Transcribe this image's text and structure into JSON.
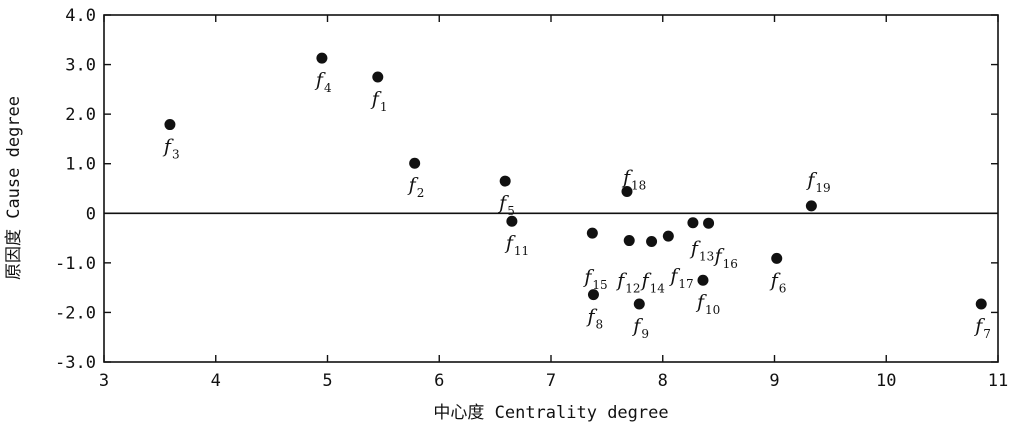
{
  "chart_data": {
    "type": "scatter",
    "title": "",
    "xlabel": "中心度 Centrality degree",
    "ylabel": "原因度 Cause degree",
    "xlim": [
      3,
      11
    ],
    "ylim": [
      -3.0,
      4.0
    ],
    "x_ticks": [
      3,
      4,
      5,
      6,
      7,
      8,
      9,
      10,
      11
    ],
    "y_ticks": [
      4.0,
      3.0,
      2.0,
      1.0,
      0,
      -1.0,
      -2.0,
      -3.0
    ],
    "x_tick_labels": [
      "3",
      "4",
      "5",
      "6",
      "7",
      "8",
      "9",
      "10",
      "11"
    ],
    "y_tick_labels": [
      "4.0",
      "3.0",
      "2.0",
      "1.0",
      "0",
      "-1.0",
      "-2.0",
      "-3.0"
    ],
    "reference_line_y": 0,
    "grid": false,
    "legend": "none",
    "marker_color": "#111111",
    "points": [
      {
        "base": "f",
        "sub": "1",
        "x": 5.45,
        "y": 2.75
      },
      {
        "base": "f",
        "sub": "2",
        "x": 5.78,
        "y": 1.01
      },
      {
        "base": "f",
        "sub": "3",
        "x": 3.59,
        "y": 1.79
      },
      {
        "base": "f",
        "sub": "4",
        "x": 4.95,
        "y": 3.13
      },
      {
        "base": "f",
        "sub": "5",
        "x": 6.59,
        "y": 0.65
      },
      {
        "base": "f",
        "sub": "6",
        "x": 9.02,
        "y": -0.91
      },
      {
        "base": "f",
        "sub": "7",
        "x": 10.85,
        "y": -1.83
      },
      {
        "base": "f",
        "sub": "8",
        "x": 7.38,
        "y": -1.64
      },
      {
        "base": "f",
        "sub": "9",
        "x": 7.79,
        "y": -1.83
      },
      {
        "base": "f",
        "sub": "10",
        "x": 8.36,
        "y": -1.35
      },
      {
        "base": "f",
        "sub": "11",
        "x": 6.65,
        "y": -0.16
      },
      {
        "base": "f",
        "sub": "12",
        "x": 7.7,
        "y": -0.55
      },
      {
        "base": "f",
        "sub": "13",
        "x": 8.27,
        "y": -0.19
      },
      {
        "base": "f",
        "sub": "14",
        "x": 7.9,
        "y": -0.57
      },
      {
        "base": "f",
        "sub": "15",
        "x": 7.37,
        "y": -0.4
      },
      {
        "base": "f",
        "sub": "16",
        "x": 8.41,
        "y": -0.2
      },
      {
        "base": "f",
        "sub": "17",
        "x": 8.05,
        "y": -0.46
      },
      {
        "base": "f",
        "sub": "18",
        "x": 7.68,
        "y": 0.44
      },
      {
        "base": "f",
        "sub": "19",
        "x": 9.33,
        "y": 0.15
      }
    ]
  }
}
